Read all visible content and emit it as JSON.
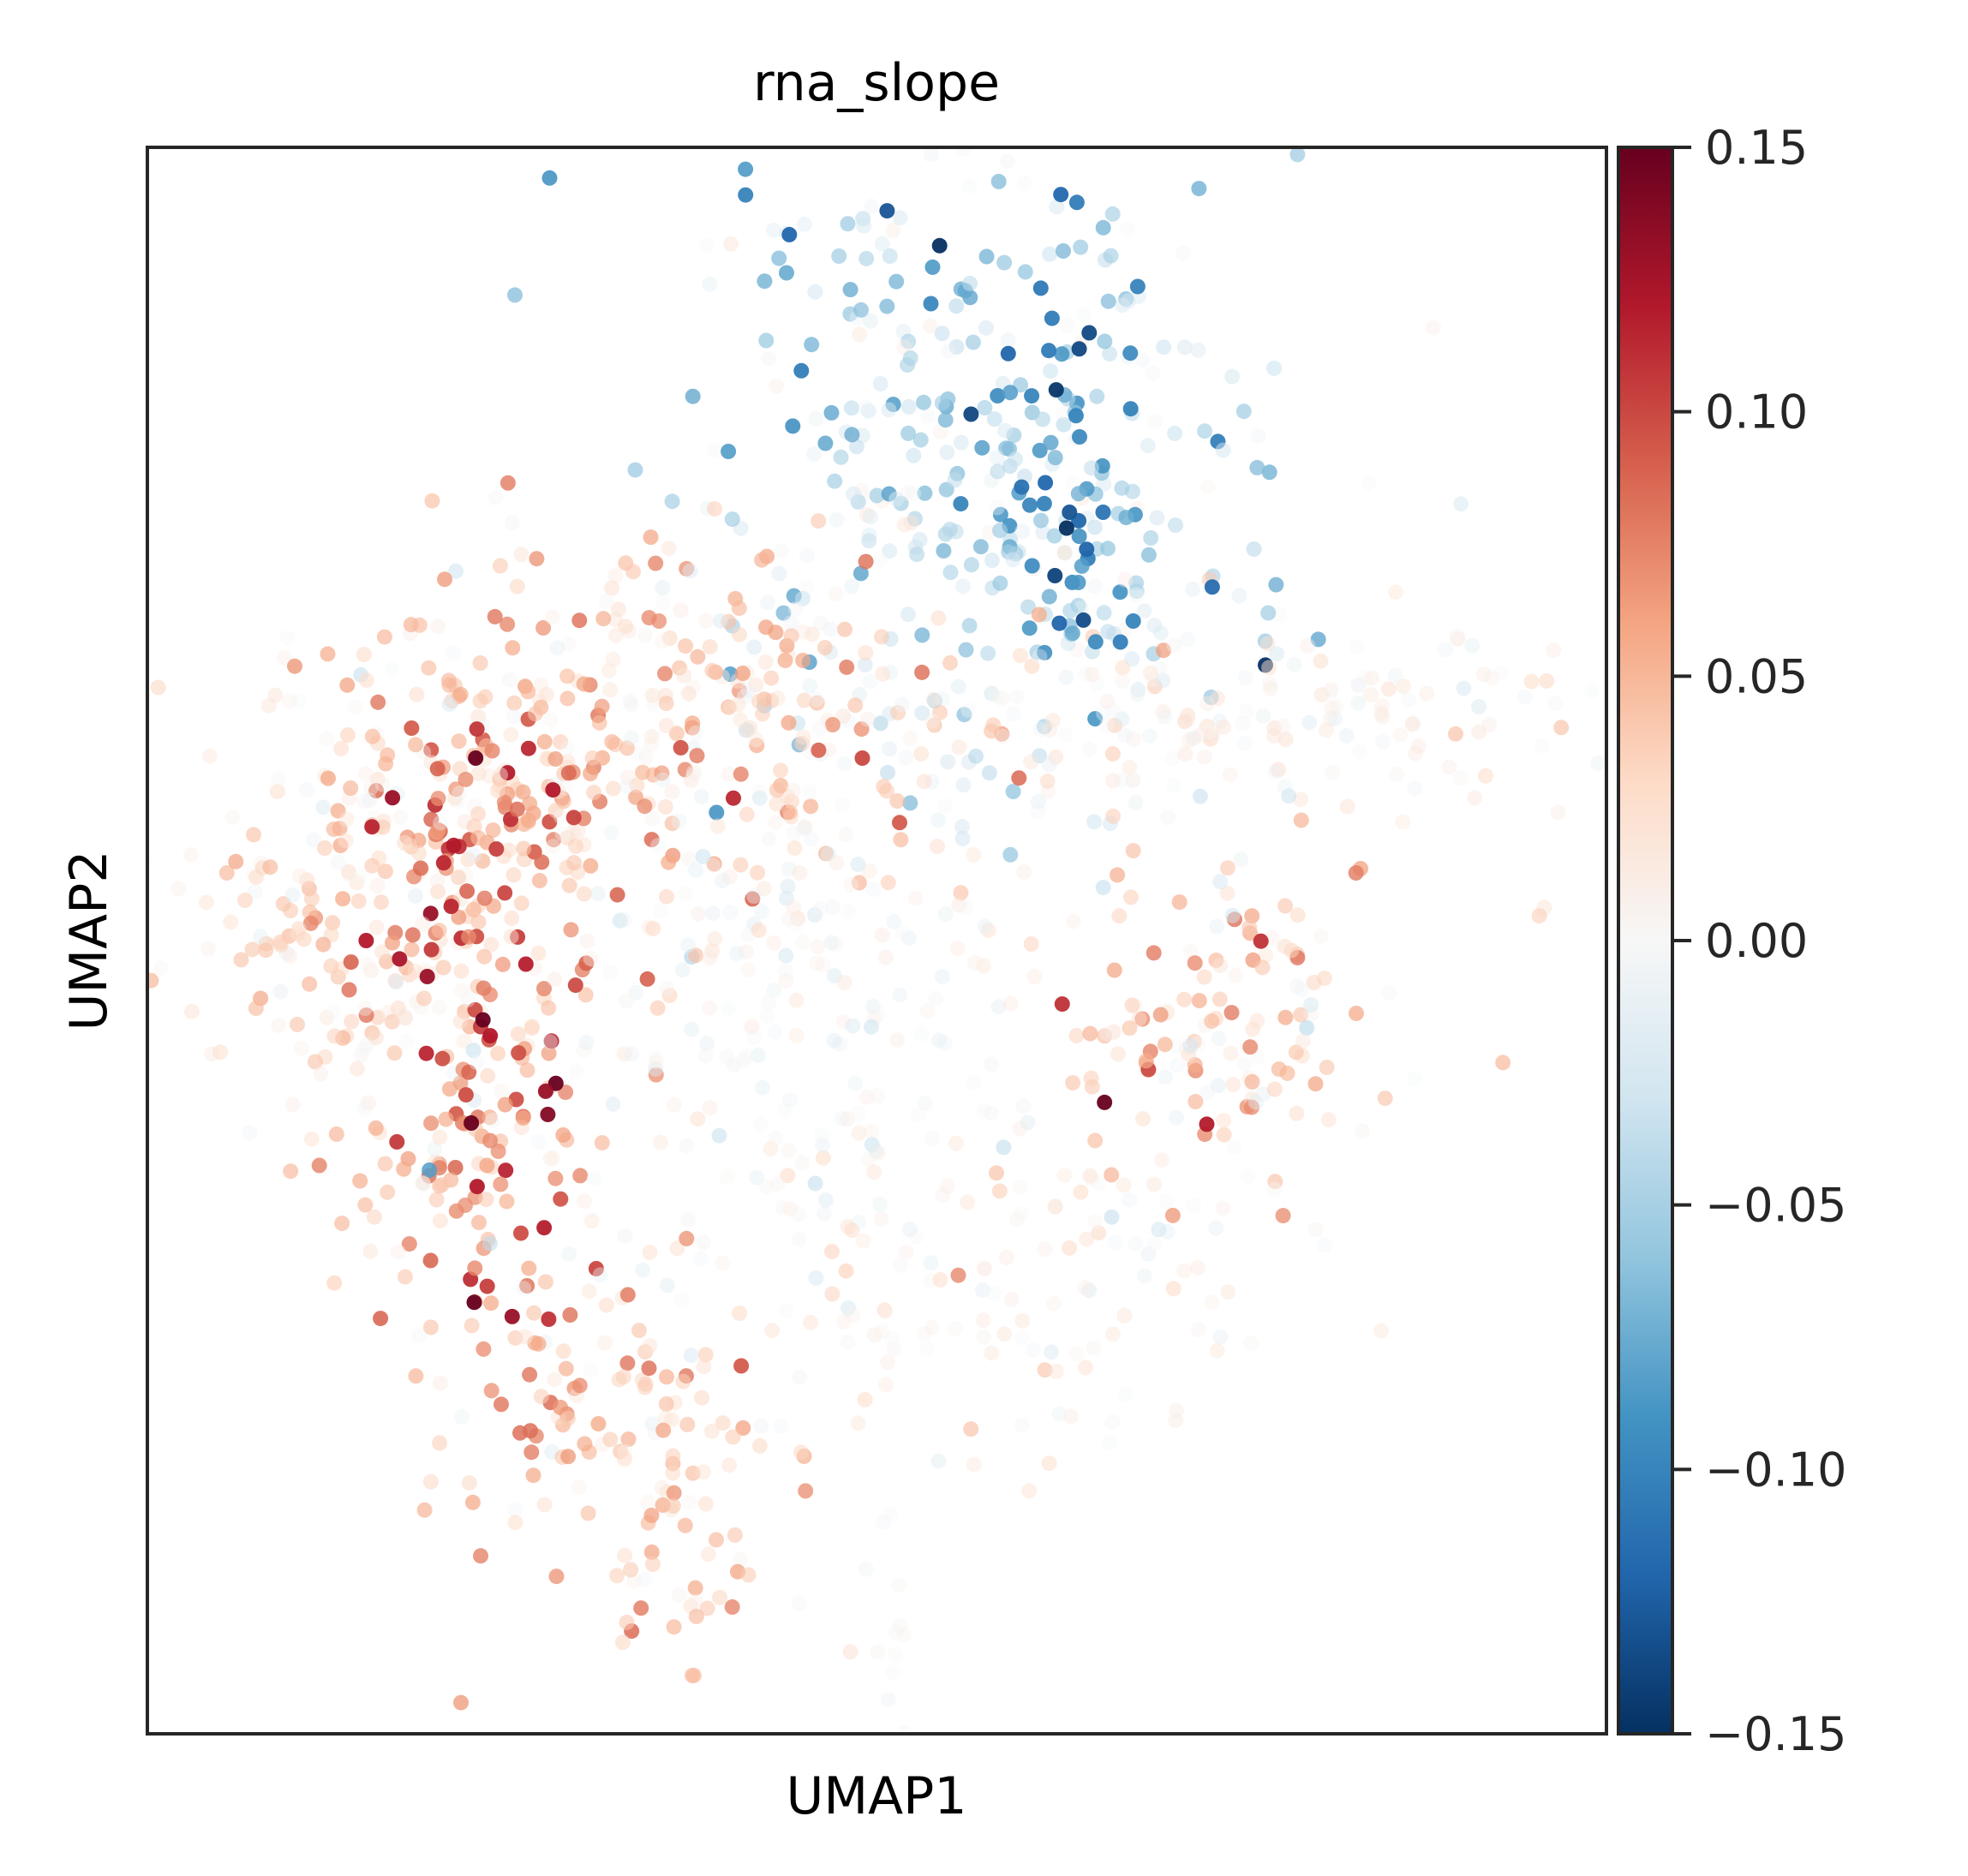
{
  "chart_data": {
    "type": "scatter",
    "title": "rna_slope",
    "xlabel": "UMAP1",
    "ylabel": "UMAP2",
    "colormap": "RdBu_r",
    "colorbar": {
      "range": [
        -0.15,
        0.15
      ],
      "ticks": [
        0.15,
        0.1,
        0.05,
        0.0,
        -0.05,
        -0.1,
        -0.15
      ],
      "tick_labels": [
        "0.15",
        "0.10",
        "0.05",
        "0.00",
        "−0.05",
        "−0.10",
        "−0.15"
      ],
      "colors": [
        "#053061",
        "#2166ac",
        "#4393c3",
        "#92c5de",
        "#d1e5f0",
        "#f7f7f7",
        "#fddbc7",
        "#f4a582",
        "#d6604d",
        "#b2182b",
        "#67001f"
      ]
    },
    "xlim": [
      0,
      1
    ],
    "ylim": [
      0,
      1
    ],
    "grid": false,
    "n_cells_approx": 2000,
    "regions": [
      {
        "name": "top-cluster",
        "cx": 0.57,
        "cy": 0.79,
        "sx": 0.1,
        "sy": 0.1,
        "n": 340,
        "mean": -0.04,
        "spread": 0.03
      },
      {
        "name": "top-right-arm",
        "cx": 0.63,
        "cy": 0.8,
        "sx": 0.03,
        "sy": 0.08,
        "n": 60,
        "mean": -0.09,
        "spread": 0.03
      },
      {
        "name": "upper-middle-band",
        "cx": 0.38,
        "cy": 0.64,
        "sx": 0.1,
        "sy": 0.06,
        "n": 280,
        "mean": 0.035,
        "spread": 0.025
      },
      {
        "name": "left-lobe",
        "cx": 0.15,
        "cy": 0.53,
        "sx": 0.06,
        "sy": 0.08,
        "n": 230,
        "mean": 0.025,
        "spread": 0.025
      },
      {
        "name": "left-dense",
        "cx": 0.24,
        "cy": 0.58,
        "sx": 0.05,
        "sy": 0.05,
        "n": 110,
        "mean": 0.06,
        "spread": 0.035
      },
      {
        "name": "left-strand",
        "cx": 0.23,
        "cy": 0.38,
        "sx": 0.04,
        "sy": 0.09,
        "n": 140,
        "mean": 0.06,
        "spread": 0.035
      },
      {
        "name": "lower-left-strand",
        "cx": 0.33,
        "cy": 0.2,
        "sx": 0.06,
        "sy": 0.05,
        "n": 110,
        "mean": 0.04,
        "spread": 0.025
      },
      {
        "name": "bottom-tail",
        "cx": 0.37,
        "cy": 0.12,
        "sx": 0.02,
        "sy": 0.05,
        "n": 40,
        "mean": 0.04,
        "spread": 0.02
      },
      {
        "name": "center",
        "cx": 0.45,
        "cy": 0.45,
        "sx": 0.09,
        "sy": 0.1,
        "n": 260,
        "mean": 0.0,
        "spread": 0.015
      },
      {
        "name": "right-band",
        "cx": 0.77,
        "cy": 0.64,
        "sx": 0.12,
        "sy": 0.03,
        "n": 170,
        "mean": 0.005,
        "spread": 0.015
      },
      {
        "name": "right-blob",
        "cx": 0.74,
        "cy": 0.45,
        "sx": 0.05,
        "sy": 0.05,
        "n": 130,
        "mean": 0.035,
        "spread": 0.025
      },
      {
        "name": "lower-center",
        "cx": 0.62,
        "cy": 0.28,
        "sx": 0.08,
        "sy": 0.06,
        "n": 110,
        "mean": 0.01,
        "spread": 0.02
      },
      {
        "name": "bottom-small",
        "cx": 0.51,
        "cy": 0.07,
        "sx": 0.008,
        "sy": 0.03,
        "n": 12,
        "mean": 0.005,
        "spread": 0.01
      },
      {
        "name": "outlier",
        "cx": 0.955,
        "cy": 0.52,
        "sx": 0.003,
        "sy": 0.003,
        "n": 3,
        "mean": 0.02,
        "spread": 0.02
      }
    ],
    "highlights": [
      {
        "x": 0.225,
        "y": 0.615,
        "value": 0.15
      },
      {
        "x": 0.168,
        "y": 0.59,
        "value": 0.13
      },
      {
        "x": 0.15,
        "y": 0.5,
        "value": 0.12
      },
      {
        "x": 0.21,
        "y": 0.56,
        "value": 0.12
      },
      {
        "x": 0.23,
        "y": 0.45,
        "value": 0.15
      },
      {
        "x": 0.235,
        "y": 0.44,
        "value": 0.12
      },
      {
        "x": 0.28,
        "y": 0.41,
        "value": 0.15
      },
      {
        "x": 0.273,
        "y": 0.405,
        "value": 0.13
      },
      {
        "x": 0.222,
        "y": 0.385,
        "value": 0.15
      },
      {
        "x": 0.226,
        "y": 0.345,
        "value": 0.12
      },
      {
        "x": 0.224,
        "y": 0.272,
        "value": 0.15
      },
      {
        "x": 0.25,
        "y": 0.263,
        "value": 0.13
      },
      {
        "x": 0.656,
        "y": 0.398,
        "value": 0.15
      },
      {
        "x": 0.627,
        "y": 0.46,
        "value": 0.11
      },
      {
        "x": 0.278,
        "y": 0.595,
        "value": 0.12
      },
      {
        "x": 0.49,
        "y": 0.615,
        "value": 0.1
      },
      {
        "x": 0.46,
        "y": 0.62,
        "value": 0.09
      },
      {
        "x": 0.245,
        "y": 0.53,
        "value": 0.1
      },
      {
        "x": 0.543,
        "y": 0.938,
        "value": -0.15
      },
      {
        "x": 0.507,
        "y": 0.96,
        "value": -0.13
      },
      {
        "x": 0.63,
        "y": 0.76,
        "value": -0.15
      },
      {
        "x": 0.632,
        "y": 0.77,
        "value": -0.13
      },
      {
        "x": 0.622,
        "y": 0.73,
        "value": -0.14
      },
      {
        "x": 0.625,
        "y": 0.7,
        "value": -0.12
      },
      {
        "x": 0.655,
        "y": 0.77,
        "value": -0.11
      },
      {
        "x": 0.59,
        "y": 0.87,
        "value": -0.12
      },
      {
        "x": 0.44,
        "y": 0.945,
        "value": -0.12
      },
      {
        "x": 0.41,
        "y": 0.97,
        "value": -0.1
      }
    ]
  }
}
